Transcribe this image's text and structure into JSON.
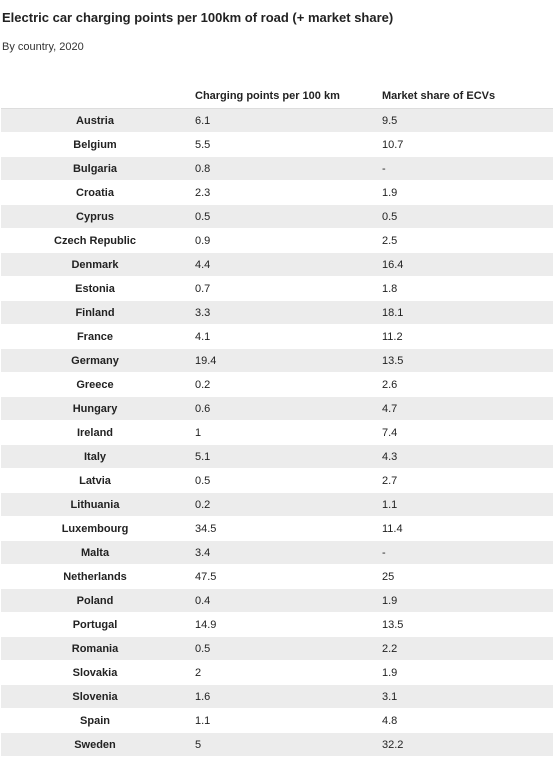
{
  "title": "Electric car charging points per 100km of road (+ market share)",
  "subtitle": "By country, 2020",
  "chart_data": {
    "type": "table",
    "title": "Electric car charging points per 100km of road (+ market share)",
    "subtitle": "By country, 2020",
    "columns": [
      "",
      "Charging points per 100 km",
      "Market share of ECVs"
    ],
    "rows": [
      [
        "Austria",
        "6.1",
        "9.5"
      ],
      [
        "Belgium",
        "5.5",
        "10.7"
      ],
      [
        "Bulgaria",
        "0.8",
        "-"
      ],
      [
        "Croatia",
        "2.3",
        "1.9"
      ],
      [
        "Cyprus",
        "0.5",
        "0.5"
      ],
      [
        "Czech Republic",
        "0.9",
        "2.5"
      ],
      [
        "Denmark",
        "4.4",
        "16.4"
      ],
      [
        "Estonia",
        "0.7",
        "1.8"
      ],
      [
        "Finland",
        "3.3",
        "18.1"
      ],
      [
        "France",
        "4.1",
        "11.2"
      ],
      [
        "Germany",
        "19.4",
        "13.5"
      ],
      [
        "Greece",
        "0.2",
        "2.6"
      ],
      [
        "Hungary",
        "0.6",
        "4.7"
      ],
      [
        "Ireland",
        "1",
        "7.4"
      ],
      [
        "Italy",
        "5.1",
        "4.3"
      ],
      [
        "Latvia",
        "0.5",
        "2.7"
      ],
      [
        "Lithuania",
        "0.2",
        "1.1"
      ],
      [
        "Luxembourg",
        "34.5",
        "11.4"
      ],
      [
        "Malta",
        "3.4",
        "-"
      ],
      [
        "Netherlands",
        "47.5",
        "25"
      ],
      [
        "Poland",
        "0.4",
        "1.9"
      ],
      [
        "Portugal",
        "14.9",
        "13.5"
      ],
      [
        "Romania",
        "0.5",
        "2.2"
      ],
      [
        "Slovakia",
        "2",
        "1.9"
      ],
      [
        "Slovenia",
        "1.6",
        "3.1"
      ],
      [
        "Spain",
        "1.1",
        "4.8"
      ],
      [
        "Sweden",
        "5",
        "32.2"
      ]
    ],
    "row_shading": "alternating"
  }
}
